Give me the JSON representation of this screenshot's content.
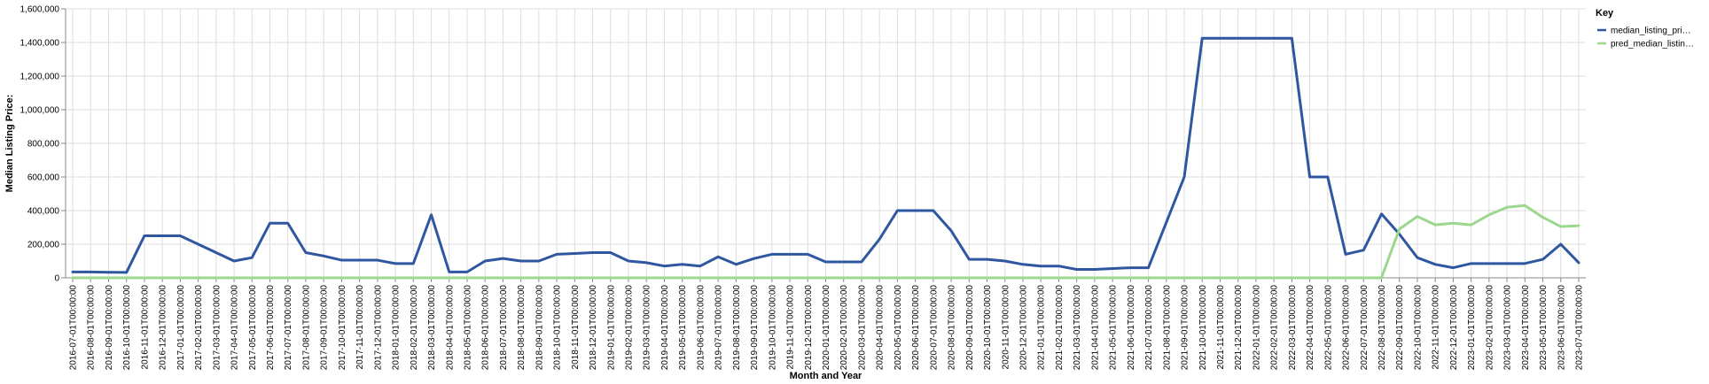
{
  "chart_data": {
    "type": "line",
    "title": "",
    "xlabel": "Month and Year",
    "ylabel": "Median Listing Price:",
    "ylim": [
      0,
      1600000
    ],
    "yticks": [
      0,
      200000,
      400000,
      600000,
      800000,
      1000000,
      1200000,
      1400000,
      1600000
    ],
    "ytick_labels": [
      "0",
      "200,000",
      "400,000",
      "600,000",
      "800,000",
      "1,000,000",
      "1,200,000",
      "1,400,000",
      "1,600,000"
    ],
    "grid": true,
    "legend": {
      "title": "Key",
      "position": "right",
      "labels": [
        "median_listing_pri…",
        "pred_median_listin…"
      ]
    },
    "x": [
      "2016-07-01T00:00:00",
      "2016-08-01T00:00:00",
      "2016-09-01T00:00:00",
      "2016-10-01T00:00:00",
      "2016-11-01T00:00:00",
      "2016-12-01T00:00:00",
      "2017-01-01T00:00:00",
      "2017-02-01T00:00:00",
      "2017-03-01T00:00:00",
      "2017-04-01T00:00:00",
      "2017-05-01T00:00:00",
      "2017-06-01T00:00:00",
      "2017-07-01T00:00:00",
      "2017-08-01T00:00:00",
      "2017-09-01T00:00:00",
      "2017-10-01T00:00:00",
      "2017-11-01T00:00:00",
      "2017-12-01T00:00:00",
      "2018-01-01T00:00:00",
      "2018-02-01T00:00:00",
      "2018-03-01T00:00:00",
      "2018-04-01T00:00:00",
      "2018-05-01T00:00:00",
      "2018-06-01T00:00:00",
      "2018-07-01T00:00:00",
      "2018-08-01T00:00:00",
      "2018-09-01T00:00:00",
      "2018-10-01T00:00:00",
      "2018-11-01T00:00:00",
      "2018-12-01T00:00:00",
      "2019-01-01T00:00:00",
      "2019-02-01T00:00:00",
      "2019-03-01T00:00:00",
      "2019-04-01T00:00:00",
      "2019-05-01T00:00:00",
      "2019-06-01T00:00:00",
      "2019-07-01T00:00:00",
      "2019-08-01T00:00:00",
      "2019-09-01T00:00:00",
      "2019-10-01T00:00:00",
      "2019-11-01T00:00:00",
      "2019-12-01T00:00:00",
      "2020-01-01T00:00:00",
      "2020-02-01T00:00:00",
      "2020-03-01T00:00:00",
      "2020-04-01T00:00:00",
      "2020-05-01T00:00:00",
      "2020-06-01T00:00:00",
      "2020-07-01T00:00:00",
      "2020-08-01T00:00:00",
      "2020-09-01T00:00:00",
      "2020-10-01T00:00:00",
      "2020-11-01T00:00:00",
      "2020-12-01T00:00:00",
      "2021-01-01T00:00:00",
      "2021-02-01T00:00:00",
      "2021-03-01T00:00:00",
      "2021-04-01T00:00:00",
      "2021-05-01T00:00:00",
      "2021-06-01T00:00:00",
      "2021-07-01T00:00:00",
      "2021-08-01T00:00:00",
      "2021-09-01T00:00:00",
      "2021-10-01T00:00:00",
      "2021-11-01T00:00:00",
      "2021-12-01T00:00:00",
      "2022-01-01T00:00:00",
      "2022-02-01T00:00:00",
      "2022-03-01T00:00:00",
      "2022-04-01T00:00:00",
      "2022-05-01T00:00:00",
      "2022-06-01T00:00:00",
      "2022-07-01T00:00:00",
      "2022-08-01T00:00:00",
      "2022-09-01T00:00:00",
      "2022-10-01T00:00:00",
      "2022-11-01T00:00:00",
      "2022-12-01T00:00:00",
      "2023-01-01T00:00:00",
      "2023-02-01T00:00:00",
      "2023-03-01T00:00:00",
      "2023-04-01T00:00:00",
      "2023-05-01T00:00:00",
      "2023-06-01T00:00:00",
      "2023-07-01T00:00:00"
    ],
    "series": [
      {
        "name": "median_listing_pri…",
        "color": "#2f57a0",
        "values": [
          35000,
          35000,
          33000,
          32000,
          250000,
          250000,
          250000,
          200000,
          150000,
          100000,
          120000,
          325000,
          325000,
          150000,
          130000,
          105000,
          105000,
          105000,
          85000,
          85000,
          375000,
          35000,
          35000,
          100000,
          115000,
          100000,
          100000,
          140000,
          145000,
          150000,
          150000,
          100000,
          90000,
          70000,
          80000,
          70000,
          125000,
          80000,
          115000,
          140000,
          140000,
          140000,
          95000,
          95000,
          95000,
          230000,
          400000,
          400000,
          400000,
          280000,
          110000,
          110000,
          100000,
          80000,
          70000,
          70000,
          50000,
          50000,
          55000,
          60000,
          60000,
          330000,
          600000,
          1425000,
          1425000,
          1425000,
          1425000,
          1425000,
          1425000,
          600000,
          600000,
          140000,
          165000,
          380000,
          260000,
          120000,
          80000,
          60000,
          85000,
          85000,
          85000,
          85000,
          110000,
          200000,
          90000
        ]
      },
      {
        "name": "pred_median_listin…",
        "color": "#9cd78e",
        "values": [
          0,
          0,
          0,
          0,
          0,
          0,
          0,
          0,
          0,
          0,
          0,
          0,
          0,
          0,
          0,
          0,
          0,
          0,
          0,
          0,
          0,
          0,
          0,
          0,
          0,
          0,
          0,
          0,
          0,
          0,
          0,
          0,
          0,
          0,
          0,
          0,
          0,
          0,
          0,
          0,
          0,
          0,
          0,
          0,
          0,
          0,
          0,
          0,
          0,
          0,
          0,
          0,
          0,
          0,
          0,
          0,
          0,
          0,
          0,
          0,
          0,
          0,
          0,
          0,
          0,
          0,
          0,
          0,
          0,
          0,
          0,
          0,
          0,
          0,
          290000,
          365000,
          315000,
          325000,
          315000,
          375000,
          420000,
          430000,
          360000,
          305000,
          310000
        ]
      }
    ]
  }
}
